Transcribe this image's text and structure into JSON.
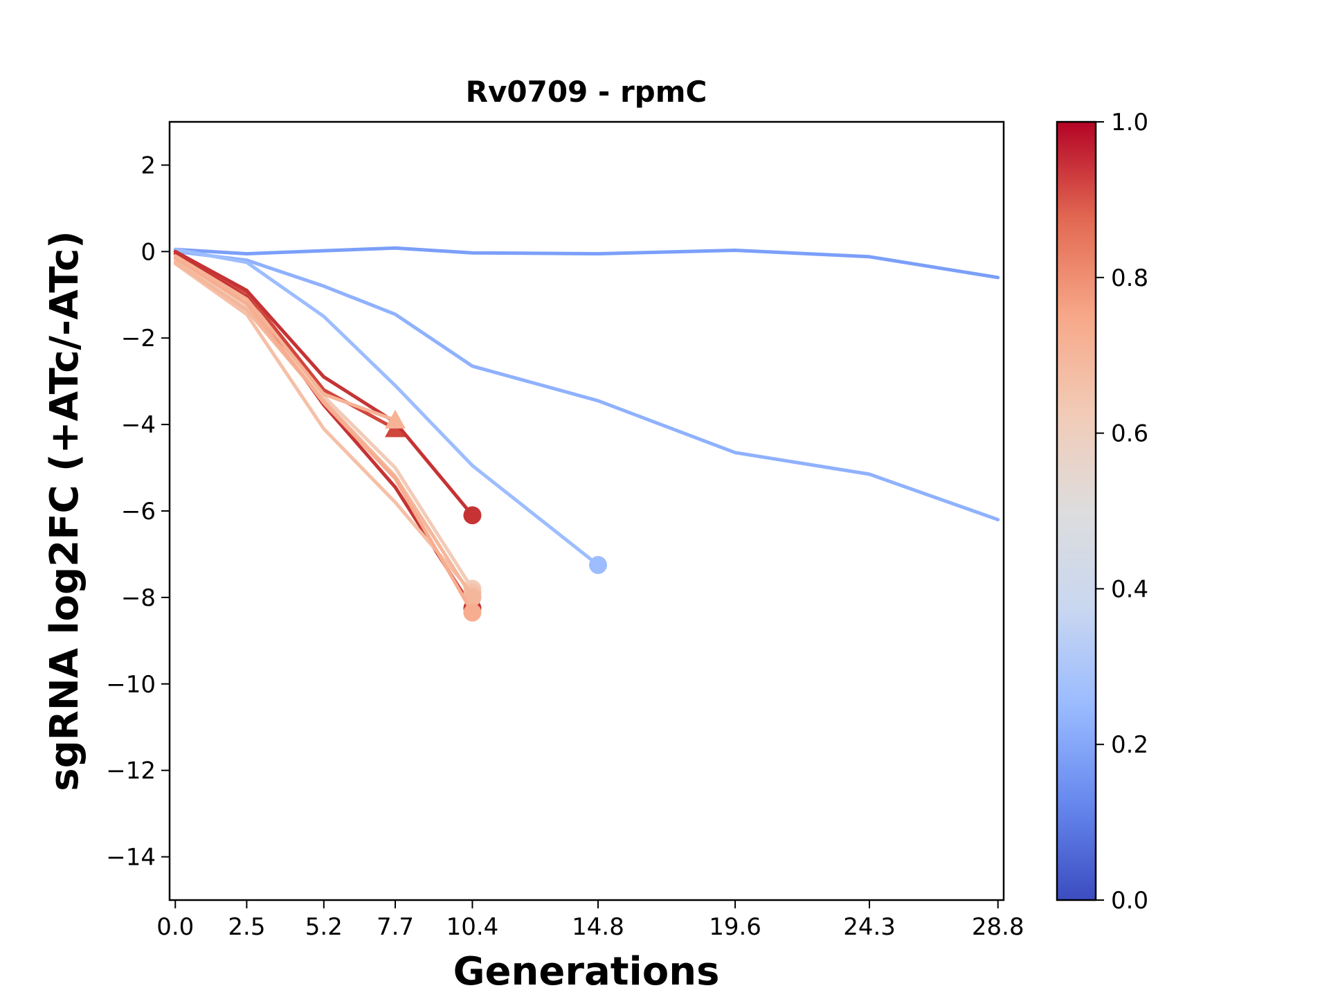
{
  "chart_data": {
    "type": "line",
    "title": "Rv0709 - rpmC",
    "xlabel": "Generations",
    "ylabel": "sgRNA log2FC (+ATc/-ATc)",
    "xlim": [
      -0.2,
      29.0
    ],
    "ylim": [
      -15,
      3
    ],
    "xticks": [
      0.0,
      2.5,
      5.2,
      7.7,
      10.4,
      14.8,
      19.6,
      24.3,
      28.8
    ],
    "xtick_labels": [
      "0.0",
      "2.5",
      "5.2",
      "7.7",
      "10.4",
      "14.8",
      "19.6",
      "24.3",
      "28.8"
    ],
    "yticks": [
      2,
      0,
      -2,
      -4,
      -6,
      -8,
      -10,
      -12,
      -14
    ],
    "ytick_labels": [
      "2",
      "0",
      "−2",
      "−4",
      "−6",
      "−8",
      "−10",
      "−12",
      "−14"
    ],
    "grid": false,
    "colorbar": {
      "colormap": "coolwarm",
      "range": [
        0.0,
        1.0
      ],
      "ticks": [
        0.0,
        0.2,
        0.4,
        0.6,
        0.8,
        1.0
      ],
      "tick_labels": [
        "0.0",
        "0.2",
        "0.4",
        "0.6",
        "0.8",
        "1.0"
      ],
      "stops": [
        "#3b4cc0",
        "#6788ee",
        "#9abbff",
        "#c9d7f0",
        "#dddddd",
        "#f2cbb7",
        "#f7a889",
        "#e26952",
        "#b40426"
      ]
    },
    "series": [
      {
        "color": "#7b9ff9",
        "marker": "none",
        "x": [
          0.0,
          2.5,
          5.2,
          7.7,
          10.4,
          14.8,
          19.6,
          24.3,
          28.8
        ],
        "y": [
          0.05,
          -0.05,
          0.02,
          0.08,
          -0.03,
          -0.05,
          0.03,
          -0.12,
          -0.6
        ]
      },
      {
        "color": "#8fb1fe",
        "marker": "none",
        "x": [
          0.0,
          2.5,
          5.2,
          7.7,
          10.4,
          14.8,
          19.6,
          24.3,
          28.8
        ],
        "y": [
          0.0,
          -0.2,
          -0.8,
          -1.45,
          -2.65,
          -3.45,
          -4.65,
          -5.15,
          -6.2
        ]
      },
      {
        "color": "#9dbdff",
        "marker": "circle",
        "x": [
          0.0,
          2.5,
          5.2,
          7.7,
          10.4,
          14.8
        ],
        "y": [
          0.05,
          -0.25,
          -1.5,
          -3.1,
          -4.95,
          -7.25
        ]
      },
      {
        "color": "#d0473d",
        "marker": "triangle",
        "x": [
          0.0,
          2.5,
          5.2,
          7.7
        ],
        "y": [
          0.0,
          -0.95,
          -3.2,
          -4.1
        ]
      },
      {
        "color": "#c53334",
        "marker": "circle",
        "x": [
          0.0,
          2.5,
          5.2,
          7.7,
          10.4
        ],
        "y": [
          0.0,
          -0.9,
          -2.9,
          -3.95,
          -6.1
        ]
      },
      {
        "color": "#c53334",
        "marker": "circle",
        "x": [
          0.0,
          2.5,
          5.2,
          7.7,
          10.4
        ],
        "y": [
          -0.05,
          -1.05,
          -3.55,
          -5.45,
          -8.25
        ]
      },
      {
        "color": "#f2cbb7",
        "marker": "circle",
        "x": [
          0.0,
          2.5,
          5.2,
          7.7,
          10.4
        ],
        "y": [
          -0.2,
          -1.3,
          -3.35,
          -5.0,
          -7.8
        ]
      },
      {
        "color": "#f5c0a7",
        "marker": "circle",
        "x": [
          0.0,
          2.5,
          5.2,
          7.7,
          10.4
        ],
        "y": [
          -0.28,
          -1.45,
          -4.1,
          -5.8,
          -7.9
        ]
      },
      {
        "color": "#f4b79b",
        "marker": "circle",
        "x": [
          0.0,
          2.5,
          5.2,
          7.7,
          10.4
        ],
        "y": [
          -0.25,
          -1.35,
          -3.45,
          -5.2,
          -8.0
        ]
      },
      {
        "color": "#f7ad90",
        "marker": "circle",
        "x": [
          0.0,
          2.5,
          5.2,
          7.7,
          10.4
        ],
        "y": [
          -0.15,
          -1.2,
          -3.5,
          -5.25,
          -8.35
        ]
      },
      {
        "color": "#f7b396",
        "marker": "triangle",
        "x": [
          0.0,
          2.5,
          5.2,
          7.7
        ],
        "y": [
          -0.1,
          -1.1,
          -3.3,
          -3.9
        ]
      }
    ]
  }
}
